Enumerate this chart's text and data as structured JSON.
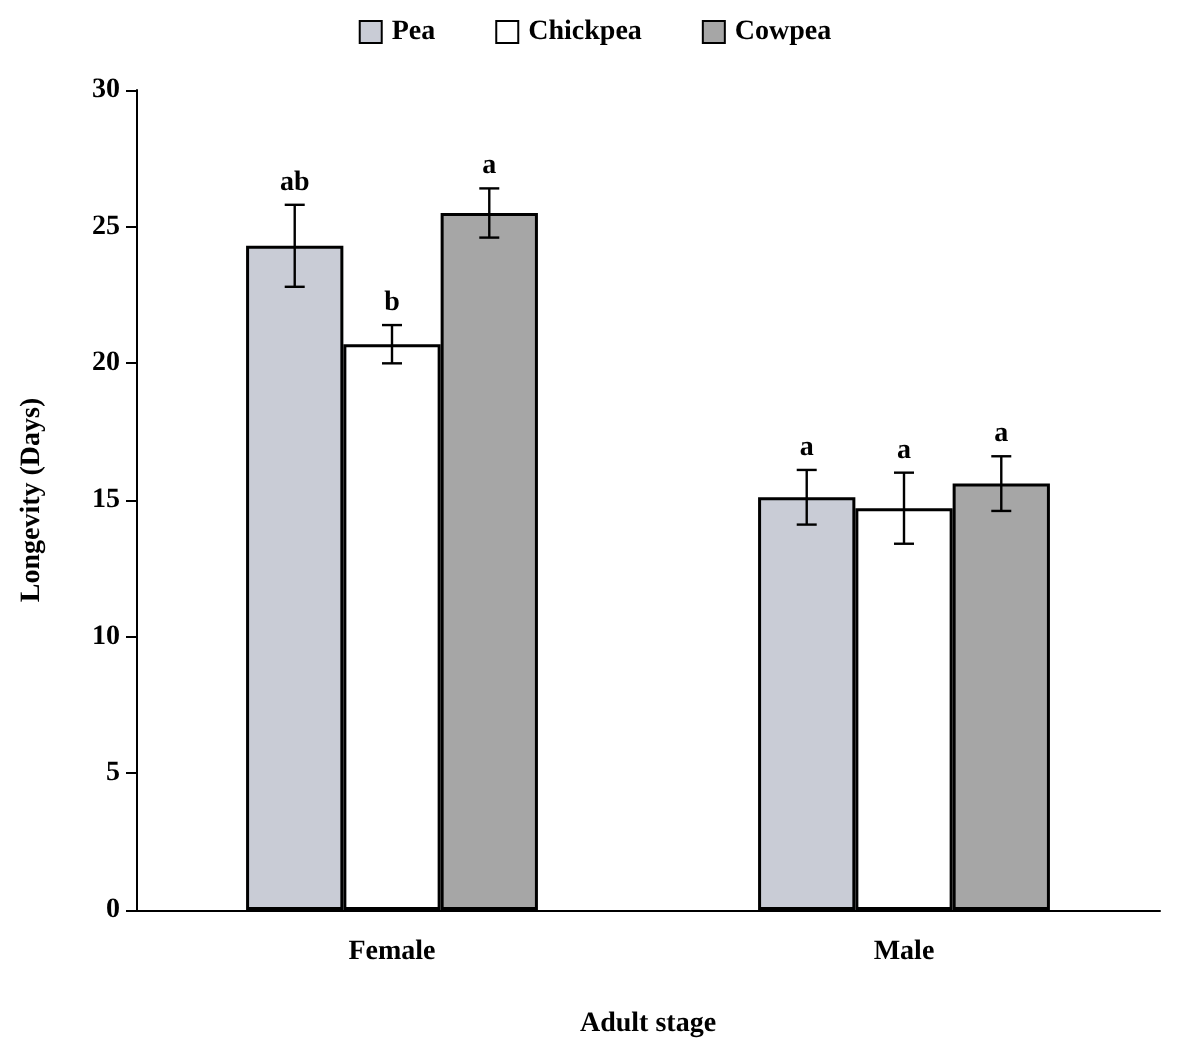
{
  "chart_data": {
    "type": "bar",
    "xlabel": "Adult stage",
    "ylabel": "Longevity (Days)",
    "categories": [
      "Female",
      "Male"
    ],
    "series": [
      {
        "name": "Pea",
        "color": "#c9ccd6",
        "values": [
          24.3,
          15.1
        ],
        "errors": [
          1.5,
          1.0
        ]
      },
      {
        "name": "Chickpea",
        "color": "#ffffff",
        "values": [
          20.7,
          14.7
        ],
        "errors": [
          0.7,
          1.3
        ]
      },
      {
        "name": "Cowpea",
        "color": "#a6a6a6",
        "values": [
          25.5,
          15.6
        ],
        "errors": [
          0.9,
          1.0
        ]
      }
    ],
    "ylim": [
      0,
      30
    ],
    "yticks": [
      0,
      5,
      10,
      15,
      20,
      25,
      30
    ],
    "grid": false,
    "legend": "top",
    "annotations": [
      "ab",
      "b",
      "a",
      "a",
      "a",
      "a"
    ]
  }
}
